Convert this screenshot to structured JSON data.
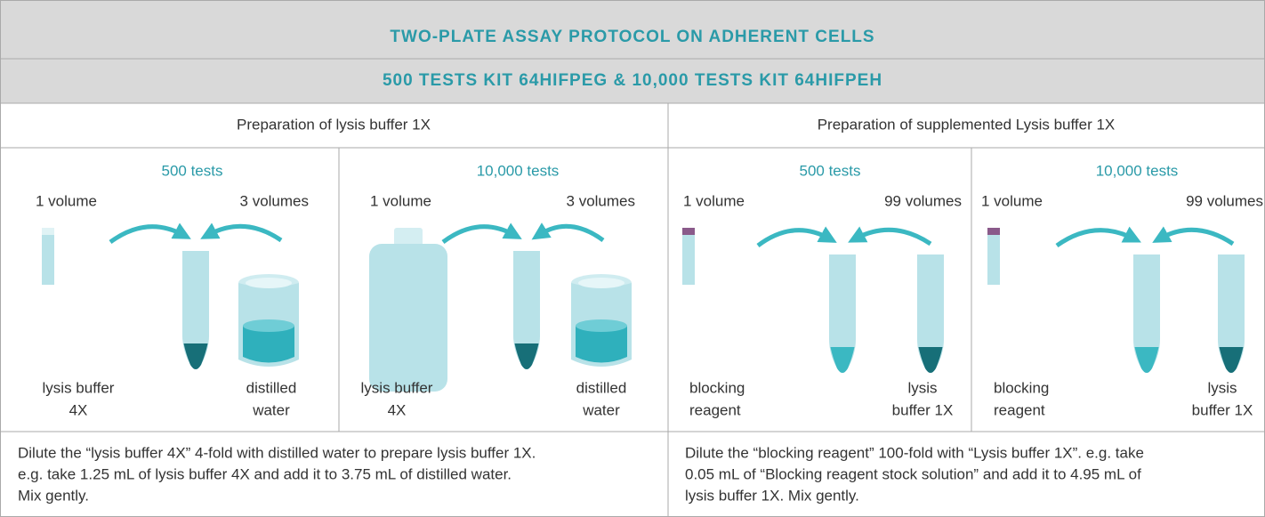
{
  "header": {
    "title": "TWO-PLATE ASSAY PROTOCOL ON ADHERENT CELLS",
    "subtitle": "500 TESTS KIT 64HIFPEG & 10,000 TESTS KIT 64HIFPEH"
  },
  "sections": [
    {
      "title": "Preparation of lysis buffer 1X",
      "panels": [
        {
          "heading": "500 tests",
          "left_amount": "1 volume",
          "right_amount": "3 volumes",
          "left_label": [
            "lysis buffer",
            "4X"
          ],
          "right_label": [
            "distilled",
            "water"
          ]
        },
        {
          "heading": "10,000 tests",
          "left_amount": "1 volume",
          "right_amount": "3 volumes",
          "left_label": [
            "lysis buffer",
            "4X"
          ],
          "right_label": [
            "distilled",
            "water"
          ]
        }
      ],
      "description": [
        "Dilute the “lysis buffer 4X” 4-fold with distilled water to prepare lysis buffer 1X.",
        "e.g. take 1.25 mL of lysis buffer 4X and add it to 3.75 mL of distilled water.",
        "Mix gently."
      ]
    },
    {
      "title": "Preparation of supplemented Lysis buffer 1X",
      "panels": [
        {
          "heading": "500 tests",
          "left_amount": "1 volume",
          "right_amount": "99 volumes",
          "left_label": [
            "blocking",
            "reagent"
          ],
          "right_label": [
            "lysis",
            "buffer 1X"
          ]
        },
        {
          "heading": "10,000 tests",
          "left_amount": "1 volume",
          "right_amount": "99 volumes",
          "left_label": [
            "blocking",
            "reagent"
          ],
          "right_label": [
            "lysis",
            "buffer 1X"
          ]
        }
      ],
      "description": [
        "Dilute the “blocking reagent” 100-fold with “Lysis buffer 1X”. e.g. take",
        "0.05 mL of “Blocking reagent stock solution” and add it to 4.95 mL of",
        "lysis buffer 1X. Mix gently."
      ]
    }
  ]
}
